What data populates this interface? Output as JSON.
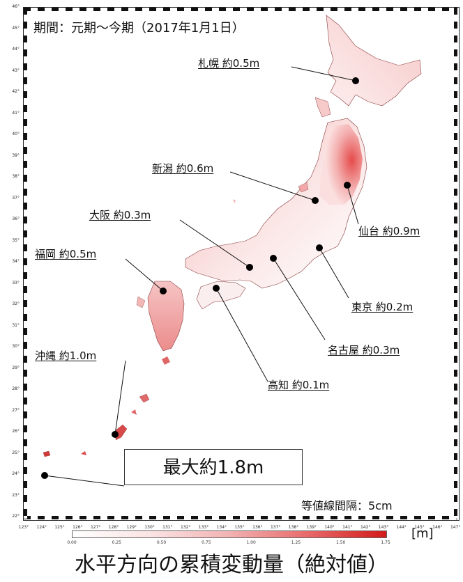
{
  "map": {
    "period": "期間：元期〜今期（2017年1月1日）",
    "contour_interval": "等値線間隔：5cm",
    "max_value": "最大約1.8m",
    "caption": "水平方向の累積変動量（絶対値）",
    "unit": "[m]"
  },
  "cities": {
    "sapporo": "札幌 約0.5m",
    "niigata": "新潟 約0.6m",
    "osaka": "大阪 約0.3m",
    "sendai": "仙台 約0.9m",
    "fukuoka": "福岡 約0.5m",
    "tokyo": "東京 約0.2m",
    "nagoya": "名古屋 約0.3m",
    "okinawa": "沖縄 約1.0m",
    "kochi": "高知 約0.1m"
  },
  "axes": {
    "latitudes": [
      "46°",
      "45°",
      "44°",
      "43°",
      "42°",
      "41°",
      "40°",
      "39°",
      "38°",
      "37°",
      "36°",
      "35°",
      "34°",
      "33°",
      "32°",
      "31°",
      "30°",
      "29°",
      "28°",
      "27°",
      "26°",
      "25°",
      "24°",
      "23°",
      "22°"
    ],
    "longitudes": [
      "123°",
      "124°",
      "125°",
      "126°",
      "127°",
      "128°",
      "129°",
      "130°",
      "131°",
      "132°",
      "133°",
      "134°",
      "135°",
      "136°",
      "137°",
      "138°",
      "139°",
      "140°",
      "141°",
      "142°",
      "143°",
      "144°",
      "145°",
      "146°",
      "147°"
    ]
  },
  "colorbar": {
    "ticks": [
      "0.00",
      "0.25",
      "0.50",
      "0.75",
      "1.00",
      "1.25",
      "1.50",
      "1.75"
    ],
    "low_color": "#ffffff",
    "high_color": "#d21a1a"
  }
}
